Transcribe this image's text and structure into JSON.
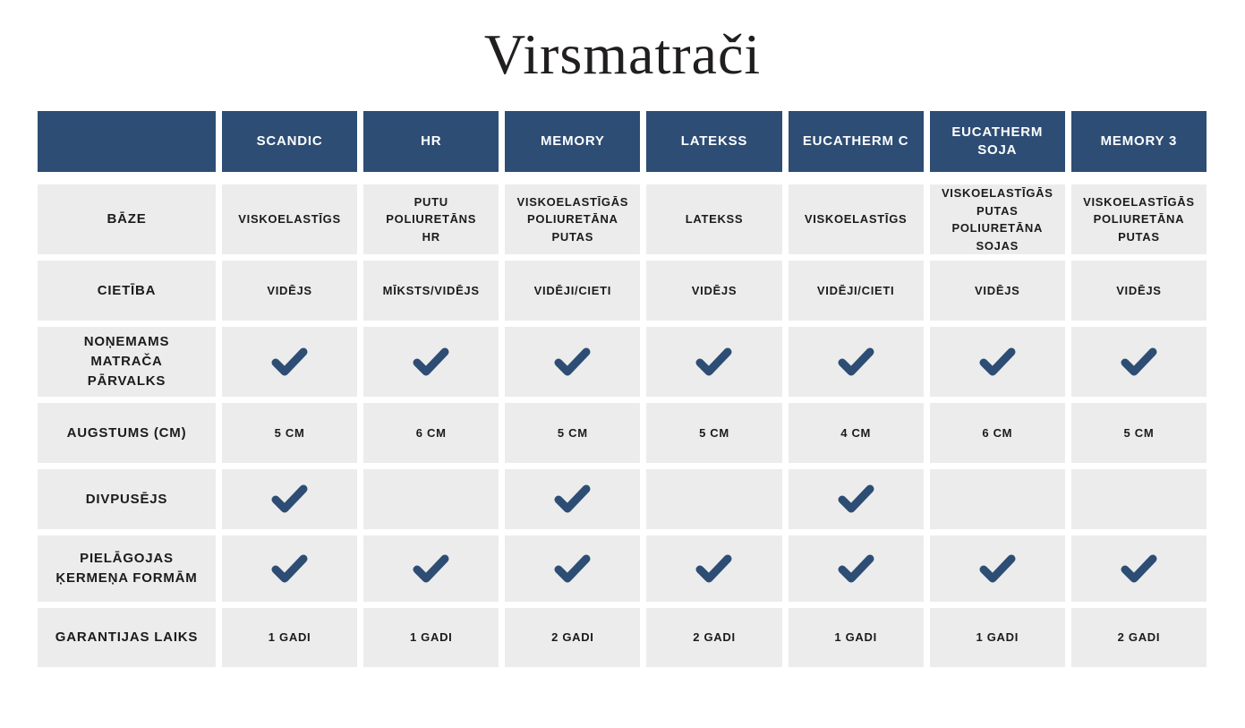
{
  "title": "Virsmatrači",
  "colors": {
    "page_bg": "#ffffff",
    "header_bg": "#2d4d75",
    "header_text": "#ffffff",
    "cell_bg": "#ececec",
    "cell_text": "#1b1b1b",
    "check": "#2d4d74"
  },
  "table": {
    "corner_label": "",
    "products": [
      "SCANDIC",
      "HR",
      "MEMORY",
      "LATEKSS",
      "EUCATHERM C",
      "EUCATHERM\nSOJA",
      "MEMORY 3"
    ],
    "rows": [
      {
        "label": "BĀZE",
        "type": "text",
        "values": [
          "VISKOELASTĪGS",
          "PUTU POLIURETĀNS\nHR",
          "VISKOELASTĪGĀS\nPOLIURETĀNA\nPUTAS",
          "LATEKSS",
          "VISKOELASTĪGS",
          "VISKOELASTĪGĀS\nPUTAS\nPOLIURETĀNA\nSOJAS",
          "VISKOELASTĪGĀS\nPOLIURETĀNA\nPUTAS"
        ]
      },
      {
        "label": "CIETĪBA",
        "type": "text",
        "values": [
          "VIDĒJS",
          "MĪKSTS/VIDĒJS",
          "VIDĒJI/CIETI",
          "VIDĒJS",
          "VIDĒJI/CIETI",
          "VIDĒJS",
          "VIDĒJS"
        ]
      },
      {
        "label": "NOŅEMAMS\nMATRAČA\nPĀRVALKS",
        "type": "check",
        "values": [
          true,
          true,
          true,
          true,
          true,
          true,
          true
        ]
      },
      {
        "label": "AUGSTUMS (CM)",
        "type": "text",
        "values": [
          "5 CM",
          "6 CM",
          "5 CM",
          "5 CM",
          "4 CM",
          "6 CM",
          "5 CM"
        ]
      },
      {
        "label": "DIVPUSĒJS",
        "type": "check",
        "values": [
          true,
          false,
          true,
          false,
          true,
          false,
          false
        ]
      },
      {
        "label": "PIELĀGOJAS\nĶERMEŅA FORMĀM",
        "type": "check",
        "values": [
          true,
          true,
          true,
          true,
          true,
          true,
          true
        ]
      },
      {
        "label": "GARANTIJAS LAIKS",
        "type": "text",
        "values": [
          "1 GADI",
          "1 GADI",
          "2 GADI",
          "2 GADI",
          "1 GADI",
          "1 GADI",
          "2 GADI"
        ]
      }
    ]
  }
}
